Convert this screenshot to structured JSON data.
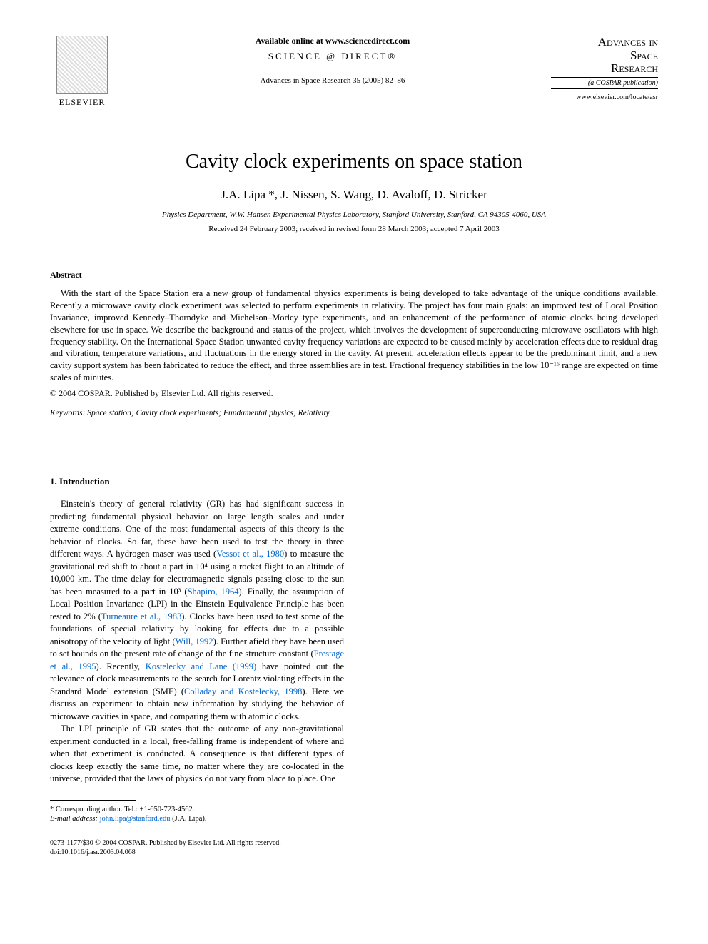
{
  "header": {
    "publisher_name": "ELSEVIER",
    "available_online": "Available online at www.sciencedirect.com",
    "science_direct": "SCIENCE @ DIRECT®",
    "journal_ref": "Advances in Space Research 35 (2005) 82–86",
    "journal_title_line1": "Advances in",
    "journal_title_line2": "Space",
    "journal_title_line3": "Research",
    "journal_subtitle": "(a COSPAR publication)",
    "journal_url": "www.elsevier.com/locate/asr"
  },
  "article": {
    "title": "Cavity clock experiments on space station",
    "authors": "J.A. Lipa *, J. Nissen, S. Wang, D. Avaloff, D. Stricker",
    "affiliation": "Physics Department, W.W. Hansen Experimental Physics Laboratory, Stanford University, Stanford, CA 94305-4060, USA",
    "dates": "Received 24 February 2003; received in revised form 28 March 2003; accepted 7 April 2003"
  },
  "abstract": {
    "heading": "Abstract",
    "body": "With the start of the Space Station era a new group of fundamental physics experiments is being developed to take advantage of the unique conditions available. Recently a microwave cavity clock experiment was selected to perform experiments in relativity. The project has four main goals: an improved test of Local Position Invariance, improved Kennedy–Thorndyke and Michelson–Morley type experiments, and an enhancement of the performance of atomic clocks being developed elsewhere for use in space. We describe the background and status of the project, which involves the development of superconducting microwave oscillators with high frequency stability. On the International Space Station unwanted cavity frequency variations are expected to be caused mainly by acceleration effects due to residual drag and vibration, temperature variations, and fluctuations in the energy stored in the cavity. At present, acceleration effects appear to be the predominant limit, and a new cavity support system has been fabricated to reduce the effect, and three assemblies are in test. Fractional frequency stabilities in the low 10⁻¹⁶ range are expected on time scales of minutes.",
    "copyright": "© 2004 COSPAR. Published by Elsevier Ltd. All rights reserved.",
    "keywords_label": "Keywords:",
    "keywords": "Space station; Cavity clock experiments; Fundamental physics; Relativity"
  },
  "intro": {
    "heading": "1. Introduction",
    "p1_a": "Einstein's theory of general relativity (GR) has had significant success in predicting fundamental physical behavior on large length scales and under extreme conditions. One of the most fundamental aspects of this theory is the behavior of clocks. So far, these have been used to test the theory in three different ways. A hydrogen maser was used (",
    "cite1": "Vessot et al., 1980",
    "p1_b": ") to measure the gravitational red shift to about a part in 10⁴ using a rocket flight to an altitude of 10,000 km. The time delay for electromagnetic signals passing close to the sun has been measured to a part in 10³ (",
    "cite2": "Shapiro, 1964",
    "p1_c": "). Finally, the assumption of Local Position Invariance (LPI) in the Einstein Equivalence Principle has been tested to 2% (",
    "cite3": "Turneaure et al., 1983",
    "p1_d": "). Clocks have been used to test some of the foundations of special relativity by looking for effects due to a possible anisotropy of the velocity of light (",
    "cite4": "Will, 1992",
    "p1_e": "). Further afield they have been used to set bounds on the present rate of change of the fine structure constant (",
    "cite5": "Prestage et al., 1995",
    "p1_f": "). Recently, ",
    "cite6": "Kostelecky and Lane (1999)",
    "p1_g": " have pointed out the relevance of clock measurements to the search for Lorentz violating effects in the Standard Model extension (SME) (",
    "cite7": "Colladay and Kostelecky, 1998",
    "p1_h": "). Here we discuss an experiment to obtain new information by studying the behavior of microwave cavities in space, and comparing them with atomic clocks.",
    "p2": "The LPI principle of GR states that the outcome of any non-gravitational experiment conducted in a local, free-falling frame is independent of where and when that experiment is conducted. A consequence is that different types of clocks keep exactly the same time, no matter where they are co-located in the universe, provided that the laws of physics do not vary from place to place. One"
  },
  "footnote": {
    "corresponding": "* Corresponding author. Tel.: +1-650-723-4562.",
    "email_label": "E-mail address:",
    "email": "john.lipa@stanford.edu",
    "email_attr": " (J.A. Lipa)."
  },
  "footer": {
    "line1": "0273-1177/$30 © 2004 COSPAR. Published by Elsevier Ltd. All rights reserved.",
    "line2": "doi:10.1016/j.asr.2003.04.068"
  },
  "colors": {
    "link": "#0066cc",
    "text": "#000000",
    "background": "#ffffff"
  }
}
